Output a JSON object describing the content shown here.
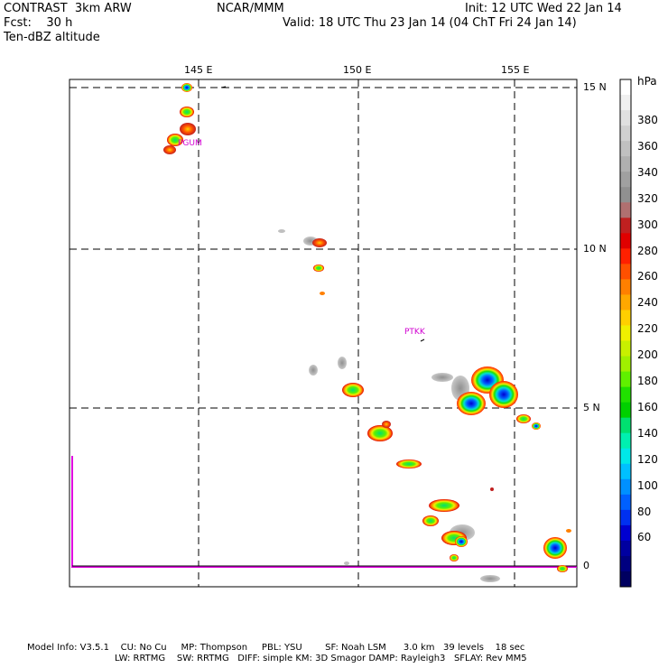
{
  "header": {
    "line1_left": "CONTRAST  3km ARW",
    "line1_center": "NCAR/MMM",
    "line1_right": "Init: 12 UTC Wed 22 Jan 14",
    "line2_left": "Fcst:    30 h",
    "line2_right": "Valid: 18 UTC Thu 23 Jan 14 (04 ChT Fri 24 Jan 14)",
    "line3_left": "Ten-dBZ altitude"
  },
  "map": {
    "lon_labels": [
      "145 E",
      "150 E",
      "155 E"
    ],
    "lat_labels": [
      "15 N",
      "10 N",
      "5 N",
      "0"
    ],
    "stations": [
      "PGUM",
      "PTKK"
    ]
  },
  "colorbar": {
    "unit": "hPa",
    "labels": [
      "380",
      "360",
      "340",
      "320",
      "300",
      "280",
      "260",
      "240",
      "220",
      "200",
      "180",
      "160",
      "140",
      "120",
      "100",
      "80",
      "60"
    ],
    "colors": [
      "#ffffff",
      "#f0f0f0",
      "#e0e0e0",
      "#d0d0d0",
      "#c0c0c0",
      "#b0b0b0",
      "#a0a0a0",
      "#909090",
      "#b07070",
      "#c02020",
      "#e00000",
      "#ff2000",
      "#ff5000",
      "#ff8000",
      "#ffa800",
      "#ffd000",
      "#f0f000",
      "#c8f000",
      "#a0f000",
      "#60f000",
      "#20e000",
      "#00d000",
      "#00e070",
      "#00f0b0",
      "#00e8e8",
      "#00c0ff",
      "#0090ff",
      "#0060ff",
      "#0030f0",
      "#0000d0",
      "#0000a0",
      "#000080",
      "#000060"
    ]
  },
  "footer": {
    "line1": "Model Info: V3.5.1    CU: No Cu     MP: Thompson     PBL: YSU        SF: Noah LSM      3.0 km   39 levels    18 sec",
    "line2": "LW: RRTMG    SW: RRTMG   DIFF: simple KM: 3D Smagor DAMP: Rayleigh3   SFLAY: Rev MM5"
  }
}
